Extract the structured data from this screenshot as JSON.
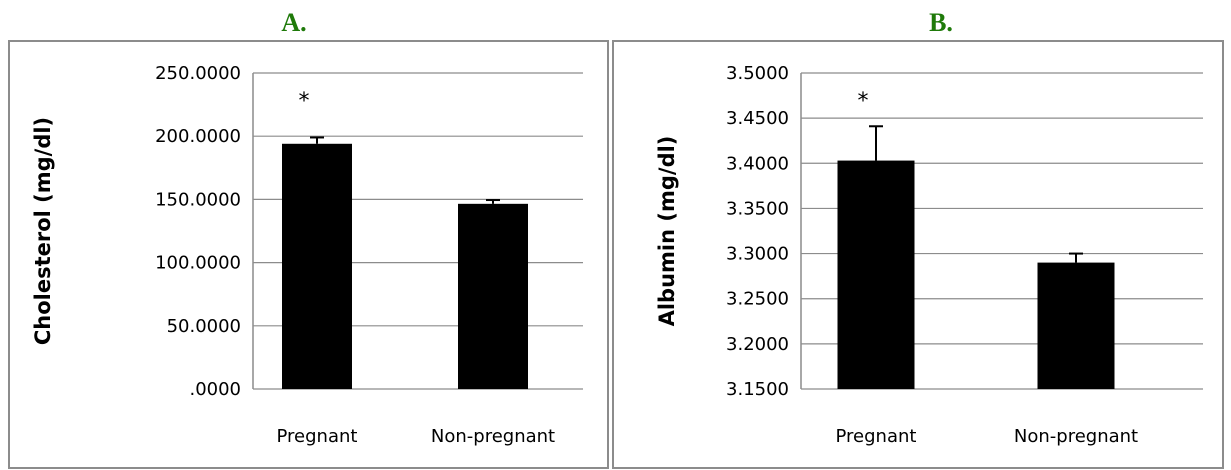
{
  "colors": {
    "panel_label": "#1f7a0a",
    "bar": "#000000",
    "grid": "#8c8c8c",
    "frame": "#8c8c8c"
  },
  "chart_data": [
    {
      "type": "bar",
      "panel_label": "A.",
      "ylabel": "Cholesterol (mg/dl)",
      "categories": [
        "Pregnant",
        "Non-pregnant"
      ],
      "values": [
        194,
        146.5
      ],
      "errors": [
        5,
        3
      ],
      "ylim": [
        0,
        250
      ],
      "yticks": [
        0,
        50,
        100,
        150,
        200,
        250
      ],
      "ytick_labels": [
        ".0000",
        "50.0000",
        "100.0000",
        "150.0000",
        "200.0000",
        "250.0000"
      ],
      "annotations": [
        "*",
        ""
      ],
      "grid": true,
      "legend": "none"
    },
    {
      "type": "bar",
      "panel_label": "B.",
      "ylabel": "Albumin (mg/dl)",
      "categories": [
        "Pregnant",
        "Non-pregnant"
      ],
      "values": [
        3.403,
        3.29
      ],
      "errors": [
        0.038,
        0.01
      ],
      "ylim": [
        3.15,
        3.5
      ],
      "yticks": [
        3.15,
        3.2,
        3.25,
        3.3,
        3.35,
        3.4,
        3.45,
        3.5
      ],
      "ytick_labels": [
        "3.1500",
        "3.2000",
        "3.2500",
        "3.3000",
        "3.3500",
        "3.4000",
        "3.4500",
        "3.5000"
      ],
      "annotations": [
        "*",
        ""
      ],
      "grid": true,
      "legend": "none"
    }
  ]
}
